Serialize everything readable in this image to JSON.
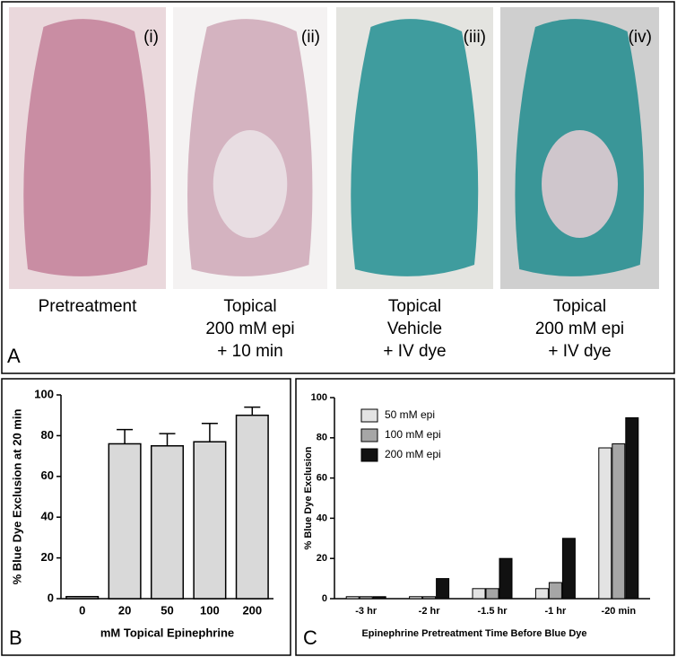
{
  "panel_a": {
    "letter": "A",
    "photos": [
      {
        "label": "(i)",
        "caption": [
          "Pretreatment"
        ]
      },
      {
        "label": "(ii)",
        "caption": [
          "Topical",
          "200 mM epi",
          "+ 10 min"
        ]
      },
      {
        "label": "(iii)",
        "caption": [
          "Topical",
          "Vehicle",
          "+ IV dye"
        ]
      },
      {
        "label": "(iv)",
        "caption": [
          "Topical",
          "200 mM epi",
          "+ IV dye"
        ]
      }
    ]
  },
  "chart_data": [
    {
      "type": "bar",
      "panel_label": "B",
      "y_label": "% Blue Dye Exclusion at 20 min",
      "x_label": "mM Topical Epinephrine",
      "categories": [
        "0",
        "20",
        "50",
        "100",
        "200"
      ],
      "values": [
        1,
        76,
        75,
        77,
        90
      ],
      "errors": [
        0,
        7,
        6,
        9,
        4
      ],
      "color": "#d9d9d9",
      "ylim": [
        0,
        100
      ],
      "yticks": [
        0,
        20,
        40,
        60,
        80,
        100
      ]
    },
    {
      "type": "grouped_bar",
      "panel_label": "C",
      "y_label": "% Blue Dye Exclusion",
      "x_label": "Epinephrine Pretreatment Time Before Blue Dye",
      "categories": [
        "-3 hr",
        "-2 hr",
        "-1.5 hr",
        "-1 hr",
        "-20 min"
      ],
      "series": [
        {
          "name": "50 mM epi",
          "color": "#e3e3e3",
          "values": [
            1,
            1,
            5,
            5,
            75
          ]
        },
        {
          "name": "100 mM epi",
          "color": "#a6a6a6",
          "values": [
            1,
            1,
            5,
            8,
            77
          ]
        },
        {
          "name": "200 mM epi",
          "color": "#111111",
          "values": [
            1,
            10,
            20,
            30,
            90
          ]
        }
      ],
      "ylim": [
        0,
        100
      ],
      "yticks": [
        0,
        20,
        40,
        60,
        80,
        100
      ],
      "legend": "upper left"
    }
  ]
}
